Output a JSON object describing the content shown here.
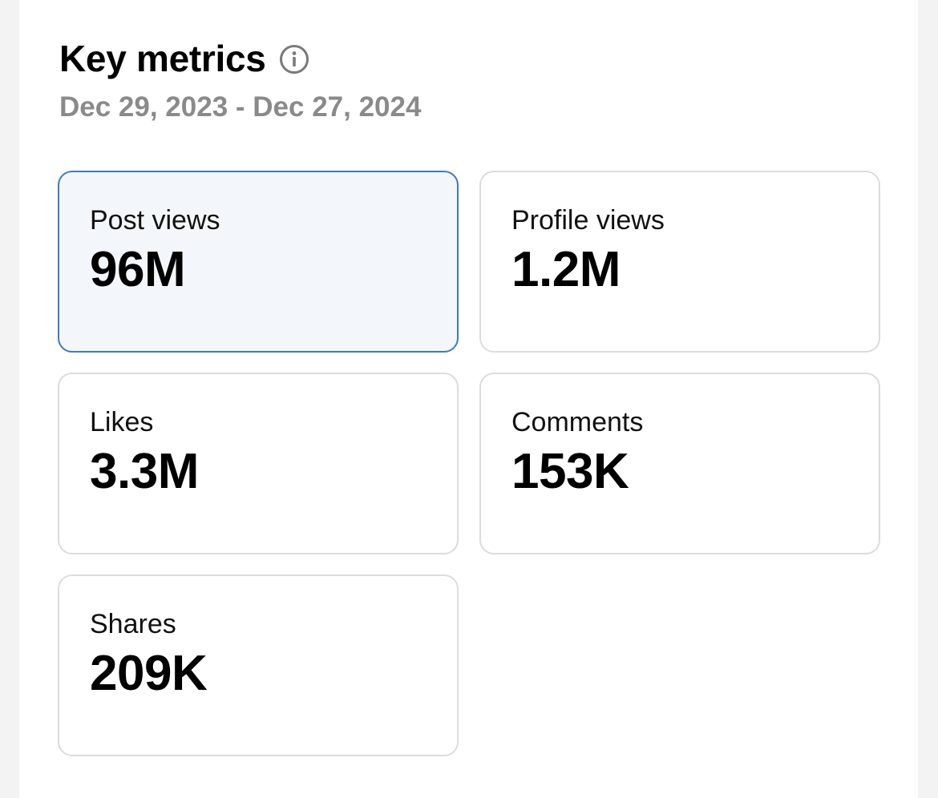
{
  "header": {
    "title": "Key metrics",
    "info_icon": "info-circle-icon",
    "date_range": "Dec 29, 2023 - Dec 27, 2024"
  },
  "colors": {
    "selected_border": "#3e7bbd",
    "selected_background": "#f3f7fb",
    "card_border": "#dcdcdc",
    "date_text": "#8a8a8a"
  },
  "metrics": [
    {
      "label": "Post views",
      "value": "96M",
      "selected": true
    },
    {
      "label": "Profile views",
      "value": "1.2M",
      "selected": false
    },
    {
      "label": "Likes",
      "value": "3.3M",
      "selected": false
    },
    {
      "label": "Comments",
      "value": "153K",
      "selected": false
    },
    {
      "label": "Shares",
      "value": "209K",
      "selected": false
    }
  ]
}
